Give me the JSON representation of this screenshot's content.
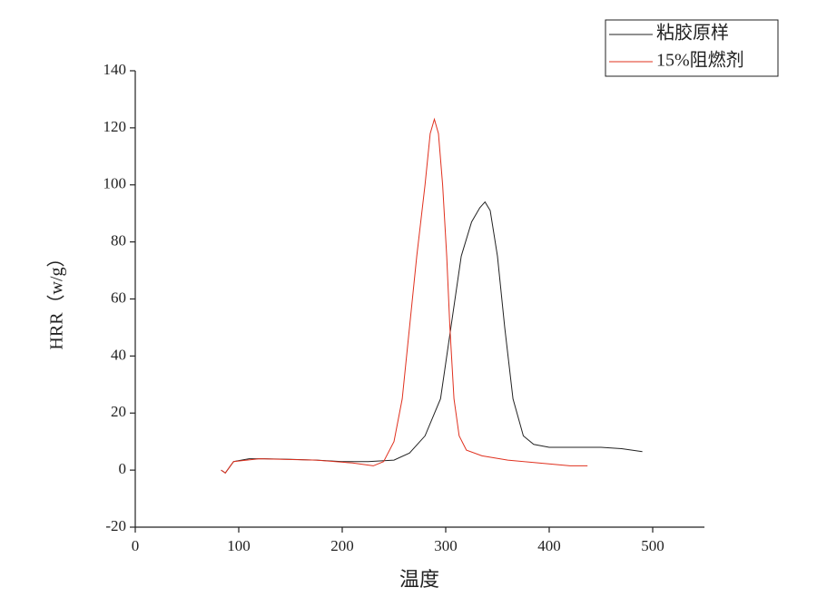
{
  "chart_data": {
    "type": "line",
    "x_label": "温度",
    "y_label": "HRR（w/g）",
    "xlim": [
      0,
      550
    ],
    "xticks": [
      0,
      100,
      200,
      300,
      400,
      500
    ],
    "ylim": [
      -20,
      140
    ],
    "yticks": [
      -20,
      0,
      20,
      40,
      60,
      80,
      100,
      120,
      140
    ],
    "legend": "upper right",
    "series": [
      {
        "name": "粘胶原样",
        "color": "#222222",
        "x": [
          83,
          87,
          95,
          110,
          125,
          150,
          175,
          200,
          225,
          250,
          265,
          280,
          295,
          305,
          315,
          325,
          333,
          338,
          343,
          350,
          357,
          365,
          375,
          385,
          400,
          420,
          450,
          470,
          490
        ],
        "values": [
          0,
          -1,
          3,
          4,
          4,
          3.8,
          3.5,
          3,
          3,
          3.5,
          6,
          12,
          25,
          50,
          75,
          87,
          92,
          94,
          91,
          75,
          50,
          25,
          12,
          9,
          8,
          8,
          8,
          7.5,
          6.5
        ]
      },
      {
        "name": "15%阻燃剂",
        "color": "#e0301e",
        "x": [
          83,
          87,
          95,
          120,
          175,
          210,
          230,
          240,
          250,
          258,
          265,
          272,
          280,
          285,
          289,
          293,
          297,
          301,
          304,
          308,
          313,
          320,
          335,
          360,
          390,
          420,
          437
        ],
        "values": [
          0,
          -1,
          3,
          4,
          3.5,
          2.5,
          1.5,
          3,
          10,
          25,
          50,
          75,
          100,
          118,
          123,
          118,
          100,
          75,
          50,
          25,
          12,
          7,
          5,
          3.5,
          2.5,
          1.5,
          1.5
        ]
      }
    ]
  }
}
